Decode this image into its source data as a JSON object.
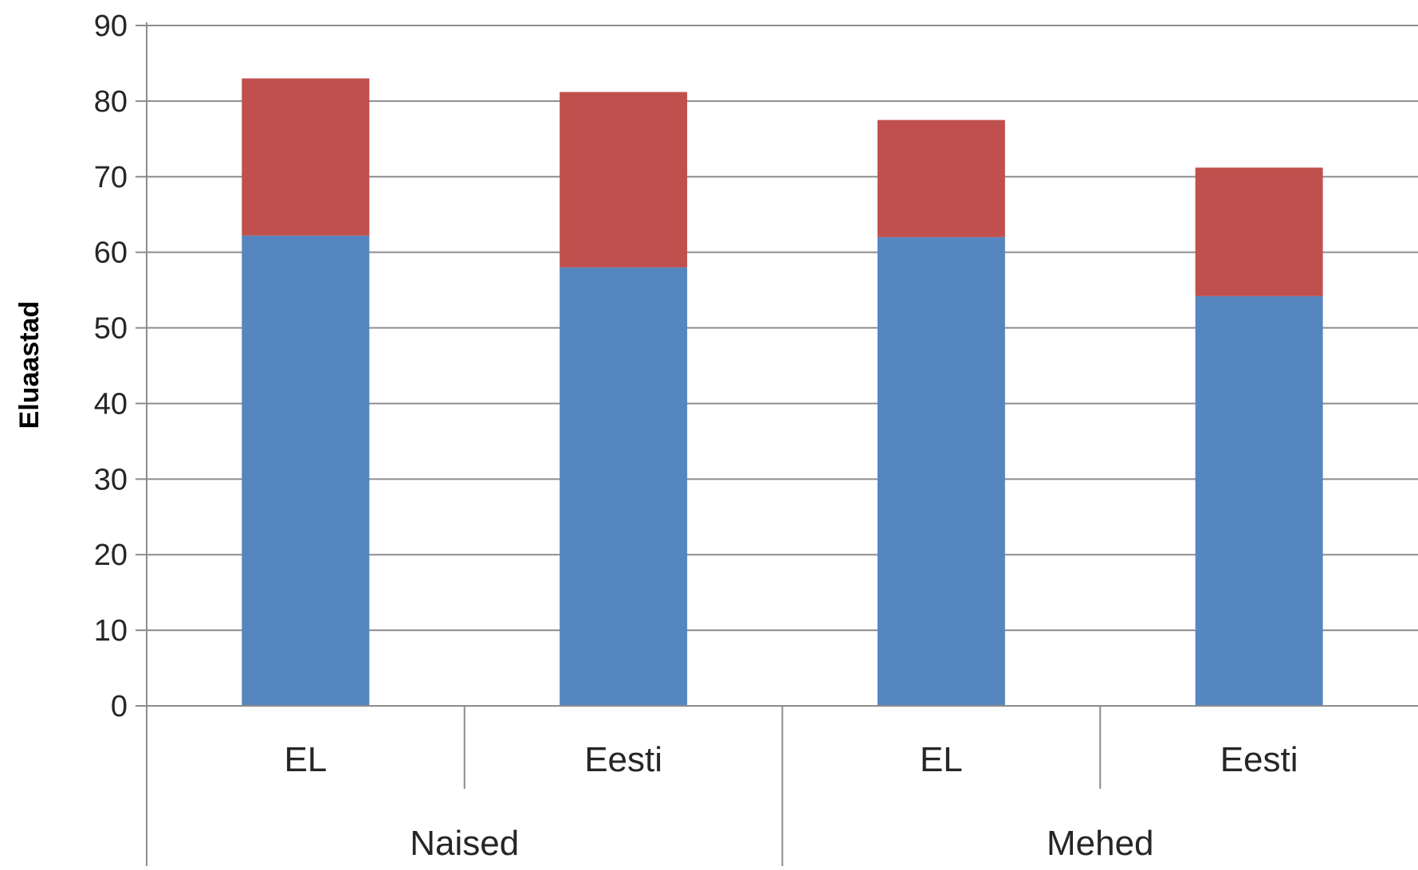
{
  "chart_data": {
    "type": "bar",
    "stacked": true,
    "title": "",
    "xlabel": "",
    "ylabel": "Eluaastad",
    "ylim": [
      0,
      90
    ],
    "yticks": [
      0,
      10,
      20,
      30,
      40,
      50,
      60,
      70,
      80,
      90
    ],
    "grid": true,
    "legend": "none",
    "categories": [
      "EL",
      "Eesti",
      "EL",
      "Eesti"
    ],
    "groups": [
      {
        "label": "Naised",
        "categories": [
          "EL",
          "Eesti"
        ]
      },
      {
        "label": "Mehed",
        "categories": [
          "EL",
          "Eesti"
        ]
      }
    ],
    "series": [
      {
        "values": [
          62.2,
          58.0,
          62.0,
          54.2
        ],
        "color": "#5586c0"
      },
      {
        "values": [
          20.8,
          23.2,
          15.5,
          17.0
        ],
        "color": "#c0504d"
      }
    ]
  }
}
